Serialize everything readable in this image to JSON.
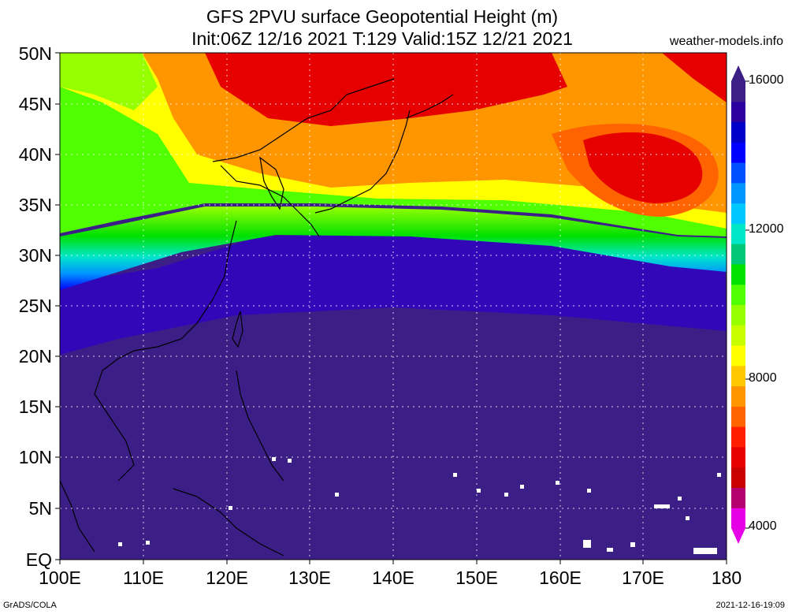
{
  "title_line1": "GFS 2PVU surface Geopotential Height (m)",
  "title_line2": "Init:06Z 12/16 2021 T:129 Valid:15Z 12/21 2021",
  "site": "weather-models.info",
  "lat_ticks": [
    "50N",
    "45N",
    "40N",
    "35N",
    "30N",
    "25N",
    "20N",
    "15N",
    "10N",
    "5N",
    "EQ"
  ],
  "lon_ticks": [
    "100E",
    "110E",
    "120E",
    "130E",
    "140E",
    "150E",
    "160E",
    "170E",
    "180"
  ],
  "colorbar": {
    "labels": [
      "16000",
      "12000",
      "8000",
      "4000"
    ],
    "colors": [
      "#e600e6",
      "#b4006e",
      "#c80000",
      "#e60000",
      "#ff1e00",
      "#ff6400",
      "#ff9600",
      "#ffc800",
      "#ffff00",
      "#c8ff00",
      "#96ff00",
      "#50ff00",
      "#00e100",
      "#00c878",
      "#00e6c8",
      "#00c8ff",
      "#0096ff",
      "#0050ff",
      "#0000ff",
      "#0000c8",
      "#2d00a0",
      "#3c1e87"
    ]
  },
  "footer_left": "GrADS/COLA",
  "footer_right": "2021-12-16-19:09"
}
